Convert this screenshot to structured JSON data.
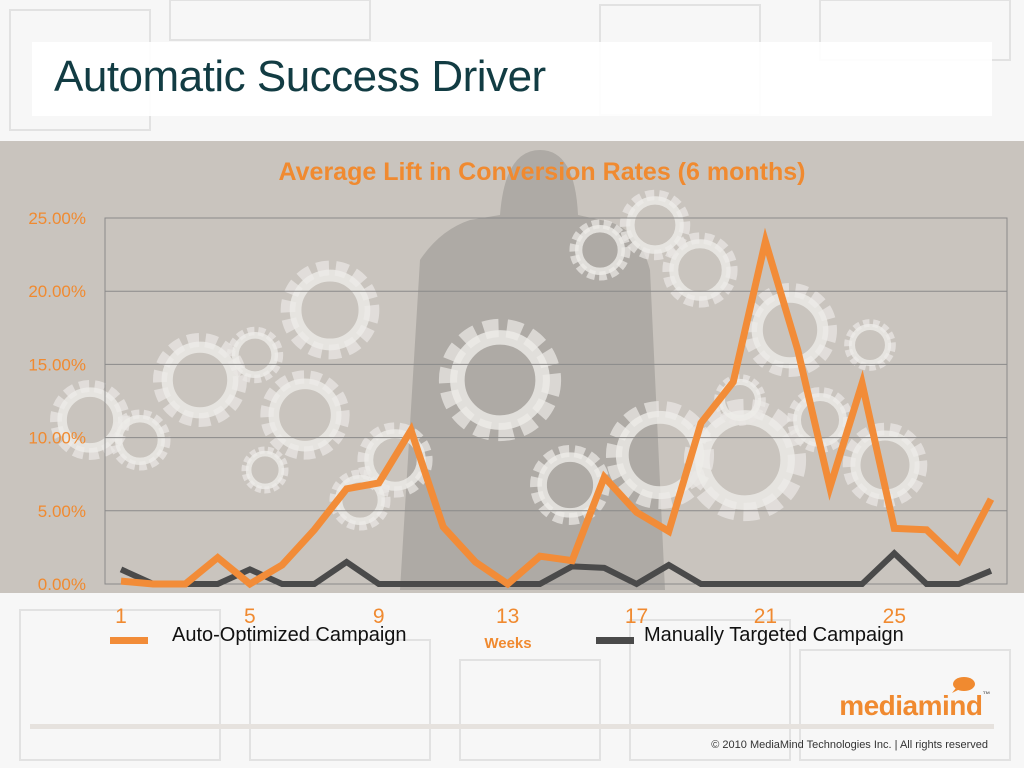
{
  "slide": {
    "title": "Automatic Success Driver",
    "copyright": "© 2010 MediaMind Technologies Inc. | All rights reserved",
    "brand": "mediamind",
    "brand_tm": "™"
  },
  "colors": {
    "accent": "#f08a30",
    "series_auto": "#f28c38",
    "series_manual": "#4a4a4a",
    "title": "#123c43"
  },
  "chart_data": {
    "type": "line",
    "title": "Average Lift in Conversion Rates (6 months)",
    "xlabel": "Weeks",
    "ylabel": "",
    "x": [
      1,
      2,
      3,
      4,
      5,
      6,
      7,
      8,
      9,
      10,
      11,
      12,
      13,
      14,
      15,
      16,
      17,
      18,
      19,
      20,
      21,
      22,
      23,
      24,
      25,
      26,
      27,
      28
    ],
    "x_tick_labels": [
      "1",
      "5",
      "9",
      "13",
      "17",
      "21",
      "25"
    ],
    "x_tick_values": [
      1,
      5,
      9,
      13,
      17,
      21,
      25
    ],
    "y_tick_labels": [
      "0.00%",
      "5.00%",
      "10.00%",
      "15.00%",
      "20.00%",
      "25.00%"
    ],
    "ylim": [
      0,
      25
    ],
    "y_unit": "%",
    "grid": true,
    "legend": "bottom",
    "series": [
      {
        "name": "Auto-Optimized Campaign",
        "color": "#f28c38",
        "values": [
          0.2,
          0.0,
          0.0,
          1.8,
          0.0,
          1.3,
          3.7,
          6.5,
          6.9,
          10.5,
          3.9,
          1.5,
          0.0,
          1.9,
          1.6,
          7.3,
          4.9,
          3.6,
          11.0,
          13.8,
          23.4,
          16.0,
          6.6,
          13.7,
          3.8,
          3.7,
          1.6,
          5.8
        ]
      },
      {
        "name": "Manually Targeted Campaign",
        "color": "#4a4a4a",
        "values": [
          1.0,
          0.0,
          0.0,
          0.0,
          1.0,
          0.0,
          0.0,
          1.5,
          0.0,
          0.0,
          0.0,
          0.0,
          0.0,
          0.0,
          1.2,
          1.1,
          0.0,
          1.3,
          0.0,
          0.0,
          0.0,
          0.0,
          0.0,
          0.0,
          2.1,
          0.0,
          0.0,
          0.9
        ]
      }
    ]
  }
}
